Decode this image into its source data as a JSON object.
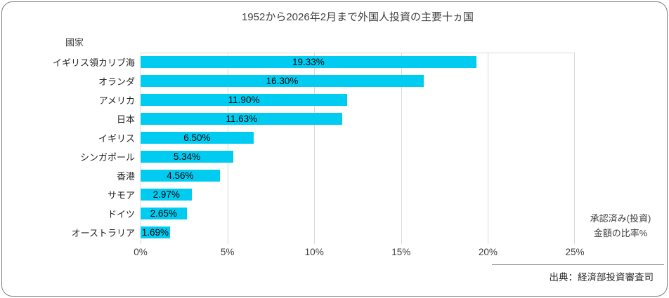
{
  "chart_data": {
    "type": "bar",
    "orientation": "horizontal",
    "title": "1952から2026年2月まで外国人投資の主要十ヵ国",
    "y_axis_title": "國家",
    "x_axis_title_lines": [
      "承認済み(投資)",
      "金額の比率%"
    ],
    "categories": [
      "イギリス領カリブ海",
      "オランダ",
      "アメリカ",
      "日本",
      "イギリス",
      "シンガポール",
      "香港",
      "サモア",
      "ドイツ",
      "オーストラリア"
    ],
    "values": [
      19.33,
      16.3,
      11.9,
      11.63,
      6.5,
      5.34,
      4.56,
      2.97,
      2.65,
      1.69
    ],
    "value_labels": [
      "19.33%",
      "16.30%",
      "11.90%",
      "11.63%",
      "6.50%",
      "5.34%",
      "4.56%",
      "2.97%",
      "2.65%",
      "1.69%"
    ],
    "x_ticks": [
      "0%",
      "5%",
      "10%",
      "15%",
      "20%",
      "25%"
    ],
    "xlim": [
      0,
      25
    ],
    "grid": true,
    "legend": "none",
    "bar_color": "#00ccf2",
    "gridline_color": "#d9d9d9",
    "source": "出典：経済部投資審査司"
  }
}
